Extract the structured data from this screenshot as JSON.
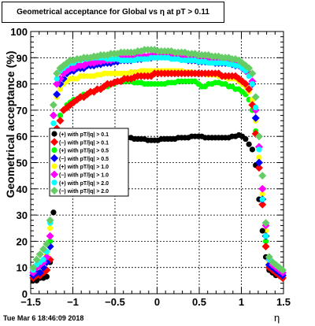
{
  "header": {
    "title": "Geometrical acceptance for Global vs  η at pT > 0.11",
    "timestamp": "Tue Mar  6 18:46:09 2018"
  },
  "chart_data": {
    "type": "scatter",
    "title": "Geometrical acceptance for Global vs  η at pT > 0.11",
    "xlabel": "η",
    "ylabel": "Geometrical acceptance (%)",
    "xlim": [
      -1.5,
      1.5
    ],
    "ylim": [
      0,
      100
    ],
    "x_ticks": [
      "−1.5",
      "−1",
      "−0.5",
      "0",
      "0.5",
      "1",
      "1.5"
    ],
    "y_ticks": [
      "0",
      "10",
      "20",
      "30",
      "40",
      "50",
      "60",
      "70",
      "80",
      "90",
      "100"
    ],
    "grid": true,
    "legend_position": "center-left",
    "x": [
      -1.47,
      -1.43,
      -1.39,
      -1.35,
      -1.31,
      -1.27,
      -1.23,
      -1.19,
      -1.15,
      -1.11,
      -1.07,
      -1.03,
      -0.99,
      -0.95,
      -0.91,
      -0.87,
      -0.83,
      -0.79,
      -0.75,
      -0.71,
      -0.67,
      -0.63,
      -0.59,
      -0.55,
      -0.51,
      -0.47,
      -0.43,
      -0.39,
      -0.35,
      -0.31,
      -0.27,
      -0.23,
      -0.19,
      -0.15,
      -0.11,
      -0.07,
      -0.03,
      0.01,
      0.05,
      0.09,
      0.13,
      0.17,
      0.21,
      0.25,
      0.29,
      0.33,
      0.37,
      0.41,
      0.45,
      0.49,
      0.53,
      0.57,
      0.61,
      0.65,
      0.69,
      0.73,
      0.77,
      0.81,
      0.85,
      0.89,
      0.93,
      0.97,
      1.01,
      1.05,
      1.09,
      1.13,
      1.17,
      1.21,
      1.25,
      1.29,
      1.33,
      1.37,
      1.41,
      1.45,
      1.49
    ],
    "series": [
      {
        "name": "(+) with pT/|q| > 0.1",
        "color": "#000000",
        "values": [
          5,
          5,
          6,
          6,
          6.5,
          12,
          31,
          50,
          54,
          56,
          57,
          58,
          58,
          59,
          59,
          59,
          59,
          59,
          59,
          59.5,
          59.5,
          60,
          60,
          60,
          60,
          59.5,
          59.5,
          59.5,
          59.5,
          59.5,
          59,
          59,
          59,
          59,
          58.5,
          58.5,
          58.5,
          58.5,
          59,
          59,
          59,
          59,
          59,
          59.5,
          59.5,
          59.5,
          59.5,
          60,
          60,
          60,
          60,
          59.5,
          59.5,
          59.5,
          59.5,
          59.5,
          59.5,
          59.5,
          59.5,
          60,
          60,
          60.5,
          60,
          59,
          57,
          55,
          49,
          36,
          24,
          14,
          9,
          8,
          7,
          7,
          6
        ]
      },
      {
        "name": "(−) with pT/|q| > 0.1",
        "color": "#ff0000",
        "values": [
          6,
          7,
          7,
          8,
          9,
          13,
          41,
          63,
          66,
          70,
          71,
          72,
          73,
          74,
          75,
          75,
          76,
          77,
          77,
          78,
          78,
          79,
          80,
          80,
          80.5,
          81,
          81,
          82,
          82,
          82,
          82.5,
          83,
          83,
          83,
          83,
          83,
          84,
          84,
          84,
          84,
          84,
          84,
          84,
          84,
          84,
          84,
          84,
          84,
          84,
          84,
          84,
          84,
          84,
          84,
          84,
          84,
          83,
          83,
          83,
          83,
          83,
          82,
          81,
          80,
          78,
          72,
          61,
          48,
          34,
          18,
          10,
          9,
          8,
          7,
          6
        ]
      },
      {
        "name": "(+) with pT/|q| > 0.5",
        "color": "#00ff00",
        "values": [
          7,
          8,
          9,
          10,
          12,
          20,
          45,
          62,
          68,
          70,
          72,
          73,
          74,
          74,
          75,
          76,
          76,
          77,
          77,
          78,
          78,
          79,
          79,
          80,
          80,
          81,
          81,
          81,
          81,
          81,
          80.5,
          80.5,
          80.5,
          80,
          80,
          80,
          80,
          80,
          80,
          80,
          80.5,
          80.5,
          80.5,
          81,
          81,
          81,
          81,
          81,
          81,
          80,
          79,
          79,
          80,
          80,
          80.5,
          80.5,
          80,
          80,
          79,
          79,
          78,
          78,
          77,
          76,
          74,
          70,
          62,
          50,
          36,
          20,
          10,
          9,
          8,
          7,
          6
        ]
      },
      {
        "name": "(−) with pT/|q| > 0.5",
        "color": "#0000ff",
        "values": [
          7,
          8,
          8,
          10,
          12,
          18,
          60,
          76,
          80,
          82,
          84,
          85,
          85,
          86,
          86,
          86,
          87,
          87,
          87,
          87.5,
          87.5,
          88,
          88,
          88,
          88.5,
          88.5,
          89,
          89,
          89,
          89,
          89.5,
          89.5,
          89.5,
          90,
          90,
          90,
          90.5,
          90.5,
          90.5,
          90.5,
          90.5,
          90.5,
          90,
          90,
          89.5,
          89.5,
          89,
          89,
          89,
          88.5,
          88.5,
          88.5,
          88.5,
          88.5,
          88,
          88,
          88,
          88,
          88,
          87.5,
          87,
          87,
          86,
          85,
          84,
          80,
          67,
          50,
          36,
          22,
          11,
          10,
          9,
          8,
          7
        ]
      },
      {
        "name": "(+) with pT/|q| > 1.0",
        "color": "#ffff00",
        "values": [
          8,
          9,
          10,
          12,
          15,
          25,
          62,
          75,
          78,
          80,
          81,
          82,
          82,
          82,
          83,
          83,
          83,
          83,
          83,
          83.5,
          83.5,
          84,
          84,
          84,
          84,
          84,
          84,
          84,
          84,
          84.5,
          84.5,
          84.5,
          85,
          85,
          85,
          85,
          85,
          85,
          85,
          85,
          85,
          85,
          85,
          85,
          85,
          84.5,
          84.5,
          84.5,
          84,
          84,
          84,
          84,
          83.5,
          83.5,
          83.5,
          83,
          83,
          82.5,
          82,
          82,
          82,
          81,
          80,
          79,
          77,
          74,
          66,
          52,
          38,
          24,
          12,
          10,
          9,
          8,
          7
        ]
      },
      {
        "name": "(−) with pT/|q| > 1.0",
        "color": "#ff00ff",
        "values": [
          8,
          10,
          11,
          12,
          14,
          22,
          68,
          80,
          82,
          84,
          85,
          86,
          86,
          87,
          87,
          87,
          88,
          88,
          88,
          88.5,
          88.5,
          89,
          89,
          89,
          89.5,
          89.5,
          90,
          90,
          90,
          90,
          90,
          90.5,
          90.5,
          90.5,
          90.5,
          91,
          91,
          91,
          91,
          91,
          91,
          91,
          90.5,
          90.5,
          90,
          90,
          90,
          90,
          89.5,
          89.5,
          89.5,
          89,
          89,
          89,
          89,
          89,
          88.5,
          88.5,
          88,
          88,
          87.5,
          87,
          86,
          85,
          84,
          81,
          70,
          56,
          40,
          26,
          13,
          11,
          10,
          9,
          8
        ]
      },
      {
        "name": "(+) with pT/|q| > 2.0",
        "color": "#00ffff",
        "values": [
          9,
          11,
          12,
          13,
          16,
          27,
          65,
          82,
          85,
          86,
          87,
          88,
          88,
          89,
          89,
          89.5,
          89.5,
          90,
          90,
          90,
          90,
          90,
          89.5,
          89.5,
          89.5,
          89.5,
          89,
          89,
          89,
          89,
          89,
          89.5,
          89.5,
          89.5,
          89.5,
          90,
          90,
          90,
          90,
          90,
          90,
          89.5,
          89.5,
          89.5,
          89,
          89,
          89,
          89,
          89,
          88.5,
          88.5,
          88.5,
          88,
          88,
          88,
          88,
          88,
          88,
          87.5,
          87.5,
          87,
          87,
          86,
          85,
          83,
          80,
          71,
          55,
          36,
          22,
          13,
          12,
          11,
          10,
          9
        ]
      },
      {
        "name": "(−) with pT/|q| > 2.0",
        "color": "#66cc66",
        "values": [
          10,
          13,
          15,
          17,
          19,
          28,
          72,
          84,
          86,
          87,
          88,
          89,
          89,
          89.5,
          89.5,
          90,
          90,
          90,
          90.5,
          90.5,
          91,
          91,
          91,
          91.5,
          91.5,
          91.5,
          92,
          92,
          92,
          92,
          92,
          92.5,
          92.5,
          93,
          93,
          93,
          93,
          92.5,
          92.5,
          92.5,
          92.5,
          92.5,
          92,
          92,
          92,
          92,
          91.5,
          91.5,
          91.5,
          91,
          91,
          91,
          91,
          90.5,
          90.5,
          90.5,
          90,
          90,
          90,
          89.5,
          89.5,
          89,
          88,
          87,
          86,
          84,
          75,
          60,
          45,
          27,
          14,
          12,
          11,
          10,
          9
        ]
      }
    ]
  }
}
